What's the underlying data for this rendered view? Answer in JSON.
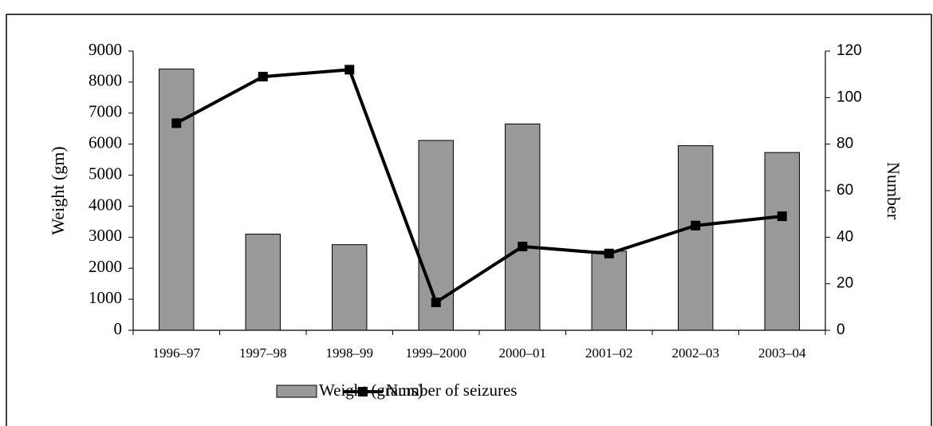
{
  "chart_data": {
    "type": "bar_line",
    "categories": [
      "1996–97",
      "1997–98",
      "1998–99",
      "1999–2000",
      "2000–01",
      "2001–02",
      "2002–03",
      "2003–04"
    ],
    "series": [
      {
        "name": "Weight (grams)",
        "type": "bar",
        "color": "#999999",
        "values": [
          8420,
          3100,
          2760,
          6120,
          6650,
          2550,
          5950,
          5730
        ]
      },
      {
        "name": "Number of seizures",
        "type": "line",
        "color": "#000000",
        "axis": "y2",
        "values": [
          89,
          109,
          112,
          12,
          36,
          33,
          45,
          49
        ]
      }
    ],
    "ylabel": "Weight (gm)",
    "y2label": "Number",
    "ylim": [
      0,
      9000
    ],
    "yticks": [
      0,
      1000,
      2000,
      3000,
      4000,
      5000,
      6000,
      7000,
      8000,
      9000
    ],
    "y2lim": [
      0,
      120
    ],
    "y2ticks": [
      0,
      20,
      40,
      60,
      80,
      100,
      120
    ],
    "grid": false,
    "legend": "bottom"
  }
}
